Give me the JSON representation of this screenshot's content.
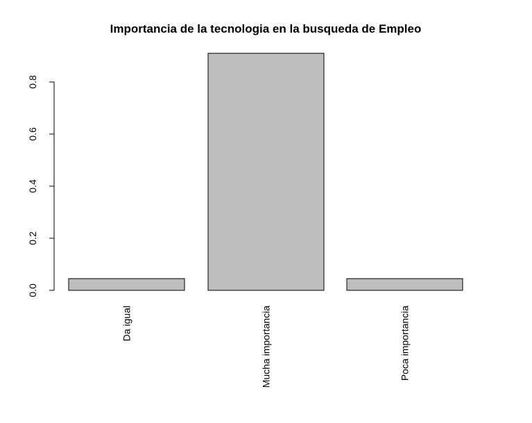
{
  "chart_data": {
    "type": "bar",
    "title": "Importancia de la tecnologia en la busqueda de Empleo",
    "categories": [
      "Da igual",
      "Mucha importancia",
      "Poca importancia"
    ],
    "values": [
      0.045,
      0.91,
      0.045
    ],
    "color": "#bebebe",
    "ylim": [
      0,
      0.91
    ],
    "yticks": [
      {
        "value": 0,
        "label": "0.0"
      },
      0.2,
      0.4,
      0.6,
      0.8
    ]
  }
}
